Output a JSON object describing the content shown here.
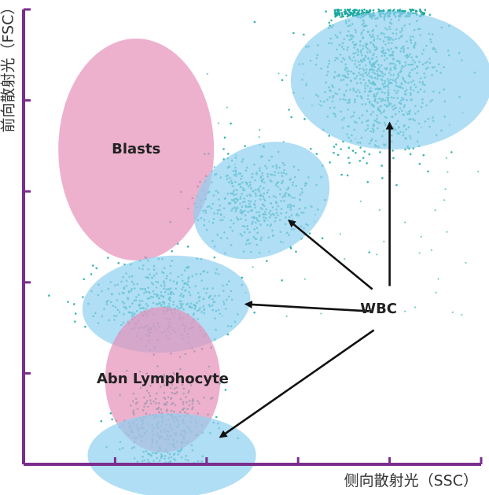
{
  "chart_data": {
    "type": "scatter",
    "title": "",
    "xlabel": "侧向散射光（SSC）",
    "ylabel": "前向散射光（FSC）",
    "xlim": [
      0,
      5
    ],
    "ylim": [
      0,
      5
    ],
    "x_ticks": [
      0,
      1,
      2,
      3,
      4,
      5
    ],
    "y_ticks": [
      0,
      1,
      2,
      3,
      4,
      5
    ],
    "grid": false,
    "axis_color": "#7b2d8e",
    "point_color": "#1aa8a0",
    "regions": [
      {
        "label": "Blasts",
        "kind": "pink",
        "cx": 1.23,
        "cy": 3.46,
        "rx": 0.85,
        "ry": 1.22
      },
      {
        "label": "",
        "kind": "blue",
        "cx": 4.02,
        "cy": 4.22,
        "rx": 1.1,
        "ry": 0.76
      },
      {
        "label": "",
        "kind": "blue",
        "cx": 2.6,
        "cy": 2.9,
        "rx": 0.78,
        "ry": 0.6,
        "rotate": -28
      },
      {
        "label": "",
        "kind": "blue",
        "cx": 1.56,
        "cy": 1.76,
        "rx": 0.92,
        "ry": 0.53,
        "rotate": -5
      },
      {
        "label": "Abn Lymphocyte",
        "kind": "pink",
        "cx": 1.52,
        "cy": 0.93,
        "rx": 0.63,
        "ry": 0.8
      },
      {
        "label": "",
        "kind": "blue",
        "cx": 1.62,
        "cy": 0.1,
        "rx": 0.92,
        "ry": 0.46
      }
    ],
    "clusters": [
      {
        "cx": 3.87,
        "cy": 4.3,
        "sx": 0.32,
        "sy": 0.45
      },
      {
        "cx": 2.55,
        "cy": 2.9,
        "sx": 0.3,
        "sy": 0.26
      },
      {
        "cx": 1.5,
        "cy": 1.8,
        "sx": 0.38,
        "sy": 0.22
      },
      {
        "cx": 1.55,
        "cy": 0.38,
        "sx": 0.25,
        "sy": 0.35
      }
    ],
    "annotations": [
      {
        "text": "WBC",
        "x": 3.88,
        "y": 1.7,
        "arrows_to": [
          [
            4.0,
            3.75
          ],
          [
            2.9,
            2.68
          ],
          [
            2.43,
            1.76
          ],
          [
            2.15,
            0.3
          ]
        ]
      }
    ]
  },
  "colors": {
    "pink_fill": "#e690b8",
    "blue_fill": "#8fd0ef",
    "arrow": "#111111"
  }
}
